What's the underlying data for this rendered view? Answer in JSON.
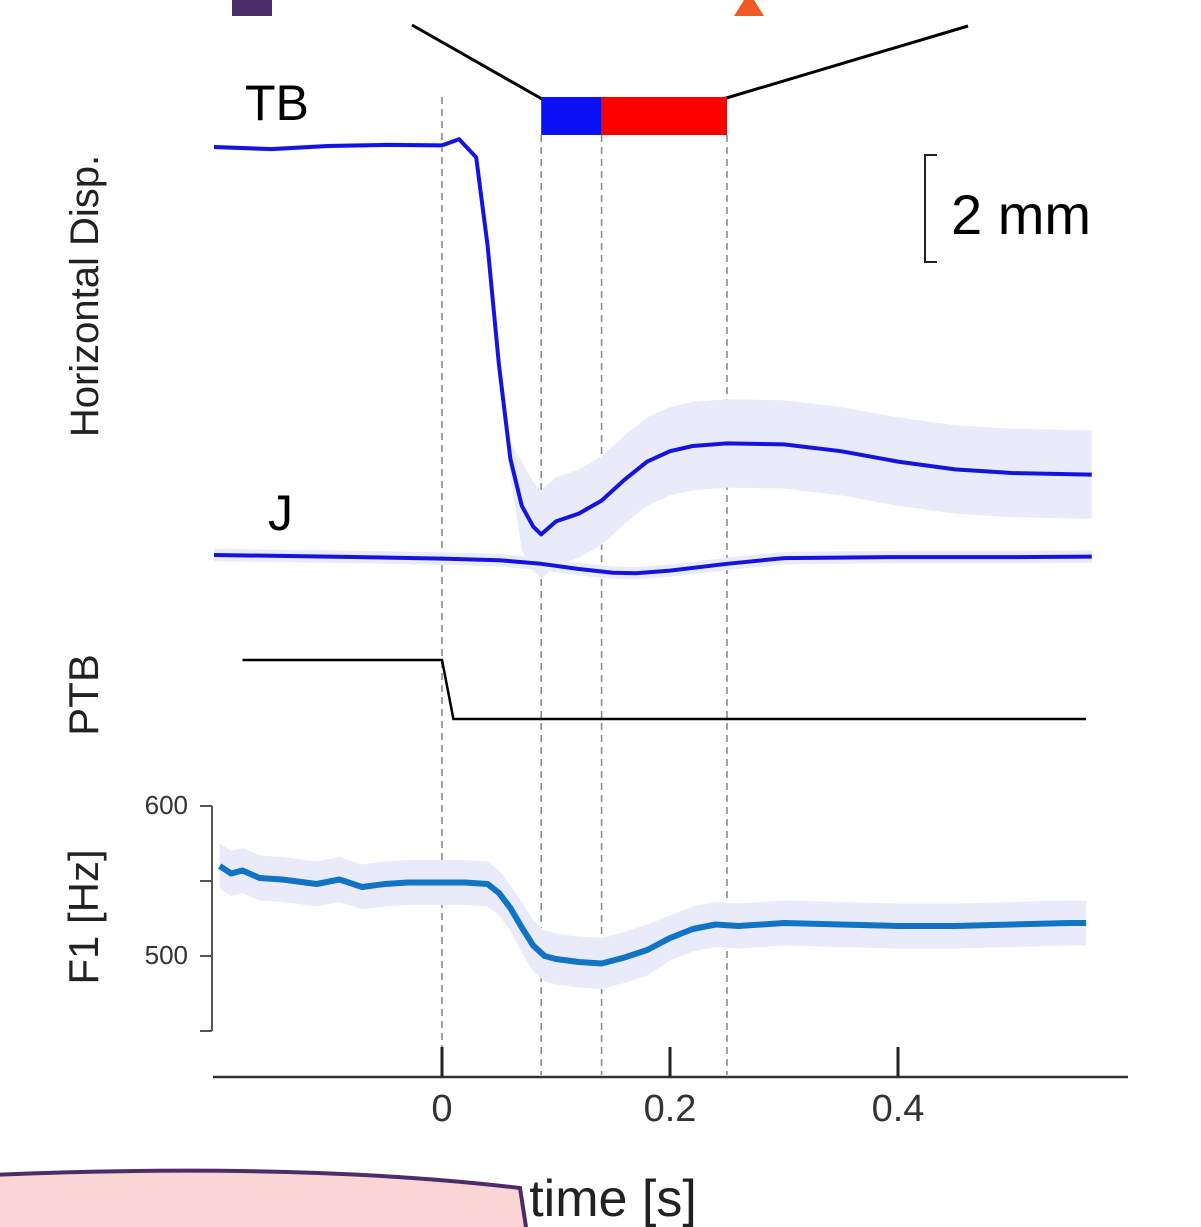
{
  "chart_data": [
    {
      "type": "line",
      "panel": "Horizontal Disp.",
      "ylabel": "Horizontal Disp.",
      "scale_bar_label": "2 mm",
      "series": [
        {
          "name": "TB",
          "color": "#1414e0",
          "x": [
            -0.2,
            -0.15,
            -0.1,
            -0.05,
            0.0,
            0.015,
            0.03,
            0.04,
            0.05,
            0.06,
            0.07,
            0.08,
            0.087,
            0.1,
            0.12,
            0.14,
            0.16,
            0.18,
            0.2,
            0.22,
            0.25,
            0.3,
            0.35,
            0.4,
            0.45,
            0.5,
            0.57
          ],
          "y": [
            0.0,
            -0.04,
            0.02,
            0.04,
            0.03,
            0.15,
            -0.2,
            -1.9,
            -4.2,
            -6.0,
            -6.9,
            -7.3,
            -7.45,
            -7.2,
            -7.05,
            -6.8,
            -6.4,
            -6.05,
            -5.85,
            -5.75,
            -5.7,
            -5.72,
            -5.85,
            -6.05,
            -6.2,
            -6.27,
            -6.3
          ]
        },
        {
          "name": "J",
          "color": "#1414e0",
          "x": [
            -0.2,
            -0.1,
            0.0,
            0.05,
            0.087,
            0.12,
            0.15,
            0.17,
            0.2,
            0.25,
            0.3,
            0.4,
            0.5,
            0.57
          ],
          "y": [
            0.0,
            -0.03,
            -0.07,
            -0.1,
            -0.17,
            -0.27,
            -0.34,
            -0.35,
            -0.3,
            -0.17,
            -0.06,
            -0.04,
            -0.04,
            -0.03
          ]
        }
      ],
      "band_color": "#e9ebfb"
    },
    {
      "type": "line",
      "panel": "PTB",
      "ylabel": "PTB",
      "series": [
        {
          "name": "PTB",
          "color": "#000000",
          "x": [
            -0.175,
            0.0,
            0.01,
            0.565
          ],
          "y": [
            1,
            1,
            0,
            0
          ]
        }
      ]
    },
    {
      "type": "line",
      "ylabel": "F1 [Hz]",
      "xlabel": "time [s]",
      "ylim": [
        450,
        600
      ],
      "xlim": [
        -0.2,
        0.6
      ],
      "yticks": [
        500,
        550,
        600
      ],
      "ytick_labels": [
        "500",
        "",
        "600"
      ],
      "xticks": [
        0,
        0.2,
        0.4
      ],
      "xtick_labels": [
        "0",
        "0.2",
        "0.4"
      ],
      "series": [
        {
          "name": "F1",
          "color": "#1173c4",
          "x": [
            -0.195,
            -0.185,
            -0.175,
            -0.16,
            -0.14,
            -0.11,
            -0.09,
            -0.07,
            -0.05,
            -0.03,
            -0.01,
            0.0,
            0.02,
            0.04,
            0.05,
            0.06,
            0.07,
            0.08,
            0.09,
            0.1,
            0.12,
            0.14,
            0.16,
            0.18,
            0.2,
            0.22,
            0.24,
            0.26,
            0.3,
            0.35,
            0.4,
            0.45,
            0.5,
            0.55,
            0.565
          ],
          "y": [
            560,
            555,
            557,
            552,
            551,
            548,
            551,
            546,
            548,
            549,
            549,
            549,
            549,
            548,
            542,
            532,
            519,
            507,
            500,
            498,
            496,
            495,
            499,
            504,
            512,
            518,
            521,
            520,
            522,
            521,
            520,
            520,
            521,
            522,
            522
          ]
        }
      ],
      "band_halfwidth": 15,
      "band_color": "#e9ebfb"
    }
  ],
  "phase_markers": {
    "times": [
      0.0,
      0.087,
      0.14,
      0.25
    ],
    "segments": [
      {
        "start": 0.087,
        "end": 0.14,
        "color": "#0b10f5"
      },
      {
        "start": 0.14,
        "end": 0.25,
        "color": "#ff0000"
      }
    ]
  },
  "decorations": {
    "top_square_color": "#4b2d69",
    "top_triangle_color": "#f15a22",
    "bottom_banner_color": "#fbd5d5",
    "bottom_banner_border": "#4b2d69"
  }
}
